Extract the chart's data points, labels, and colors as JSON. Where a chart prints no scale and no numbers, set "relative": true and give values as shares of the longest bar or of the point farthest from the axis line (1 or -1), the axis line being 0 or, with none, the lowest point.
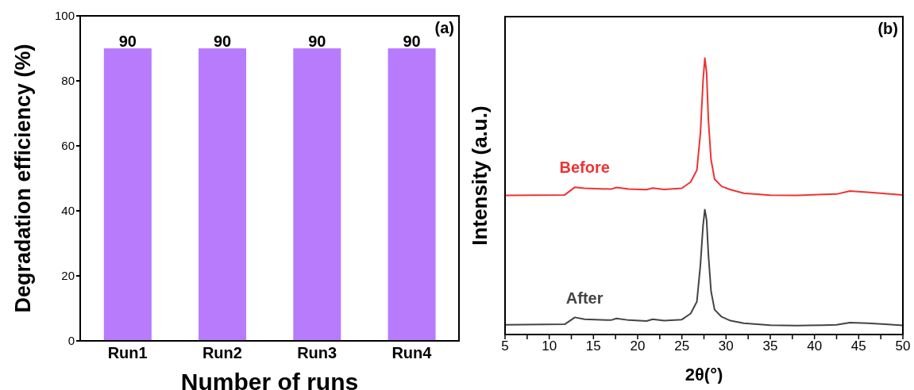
{
  "chart_data": [
    {
      "type": "bar",
      "categories": [
        "Run1",
        "Run2",
        "Run3",
        "Run4"
      ],
      "values": [
        90,
        90,
        90,
        90
      ],
      "color": "#b87bfc",
      "ylim": [
        0,
        100
      ],
      "yticks": [
        0,
        20,
        40,
        60,
        80,
        100
      ],
      "xlabel": "Number of runs",
      "ylabel": "Degradation efficiency (%)",
      "data_labels": true,
      "grid": false,
      "legend": false,
      "annotations": [
        "(a)"
      ]
    },
    {
      "type": "line",
      "relative": true,
      "xlabel": "2θ(°)",
      "ylabel": "Intensity (a.u.)",
      "xlim": [
        5,
        50
      ],
      "xticks": [
        5,
        {
          "value": 7.5,
          "label": null
        },
        10,
        {
          "value": 12.5,
          "label": null
        },
        15,
        {
          "value": 17.5,
          "label": null
        },
        20,
        {
          "value": 22.5,
          "label": null
        },
        25,
        {
          "value": 27.5,
          "label": null
        },
        30,
        {
          "value": 32.5,
          "label": null
        },
        35,
        {
          "value": 37.5,
          "label": null
        },
        40,
        {
          "value": 42.5,
          "label": null
        },
        45,
        {
          "value": 47.5,
          "label": null
        },
        50
      ],
      "tick_labels": "x",
      "grid": false,
      "marker": "none",
      "line_style": "solid",
      "annotations": [
        "(b)"
      ],
      "x": [
        5,
        11.75,
        12.9,
        14,
        17,
        17.6,
        19,
        21,
        21.7,
        23,
        25,
        26,
        26.7,
        27.1,
        27.4,
        27.6,
        27.8,
        28.0,
        28.3,
        28.7,
        29.5,
        30.5,
        32,
        35,
        38,
        41,
        42.5,
        44,
        46,
        48,
        50
      ],
      "series": [
        {
          "name": "Before",
          "color": "#ee3333",
          "values": [
            0.503,
            0.505,
            0.533,
            0.529,
            0.526,
            0.532,
            0.526,
            0.524,
            0.53,
            0.525,
            0.529,
            0.552,
            0.595,
            0.729,
            0.919,
            1.0,
            0.948,
            0.776,
            0.633,
            0.562,
            0.536,
            0.524,
            0.511,
            0.504,
            0.503,
            0.507,
            0.508,
            0.519,
            0.515,
            0.51,
            0.505
          ]
        },
        {
          "name": "After",
          "color": "#444444",
          "values": [
            0.035,
            0.037,
            0.062,
            0.055,
            0.052,
            0.058,
            0.052,
            0.049,
            0.055,
            0.05,
            0.054,
            0.076,
            0.119,
            0.252,
            0.395,
            0.452,
            0.414,
            0.29,
            0.157,
            0.09,
            0.064,
            0.05,
            0.041,
            0.034,
            0.032,
            0.034,
            0.035,
            0.043,
            0.041,
            0.037,
            0.033
          ]
        }
      ]
    }
  ]
}
